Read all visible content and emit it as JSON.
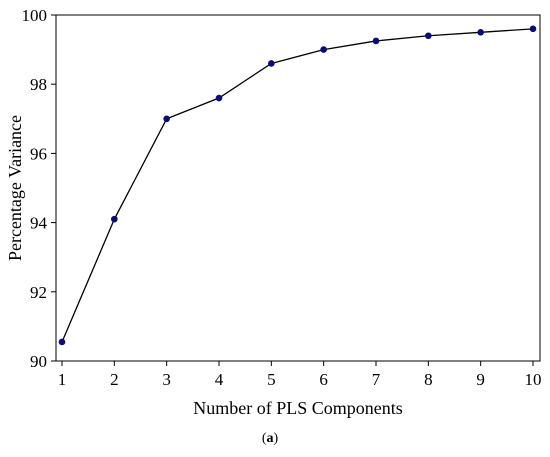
{
  "chart_data": {
    "type": "line",
    "title": "",
    "xlabel": "Number of PLS Components",
    "ylabel": "Percentage Variance",
    "x": [
      1,
      2,
      3,
      4,
      5,
      6,
      7,
      8,
      9,
      10
    ],
    "series": [
      {
        "values": [
          90.55,
          94.1,
          97.0,
          97.6,
          98.6,
          99.0,
          99.25,
          99.4,
          99.5,
          99.6
        ]
      }
    ],
    "xlim": [
      1,
      10
    ],
    "ylim": [
      90,
      100
    ],
    "xticks": [
      "1",
      "2",
      "3",
      "4",
      "5",
      "6",
      "7",
      "8",
      "9",
      "10"
    ],
    "yticks": [
      "90",
      "92",
      "94",
      "96",
      "98",
      "100"
    ],
    "grid": false,
    "legend": "none",
    "colors": {
      "line": "#000000",
      "marker": "#0a0a7a",
      "axis": "#000000"
    }
  },
  "caption": {
    "open": "(",
    "label": "a",
    "close": ")"
  }
}
